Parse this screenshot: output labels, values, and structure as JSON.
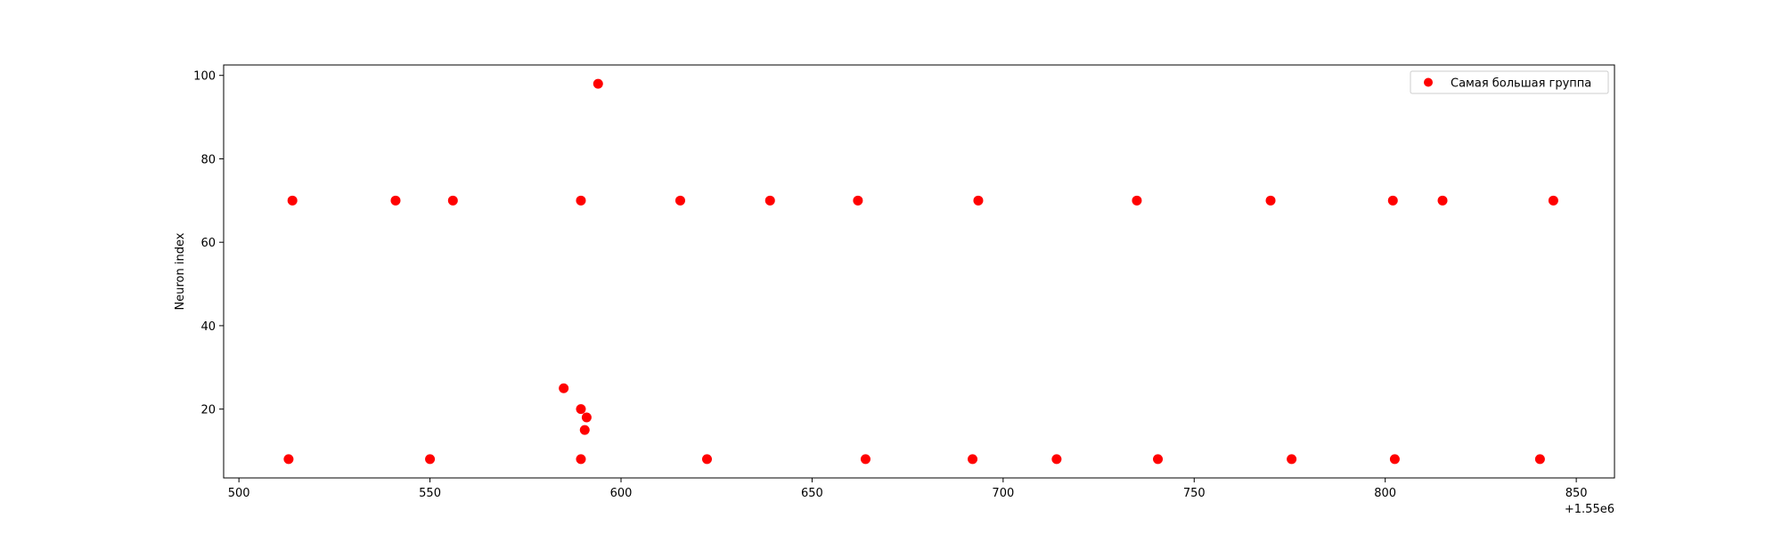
{
  "chart_data": {
    "type": "scatter",
    "title": "",
    "xlabel": "",
    "ylabel": "Neuron index",
    "x_offset_label": "+1.55e6",
    "xlim": [
      496,
      860
    ],
    "ylim": [
      3.5,
      102.5
    ],
    "xticks": [
      500,
      550,
      600,
      650,
      700,
      750,
      800,
      850
    ],
    "yticks": [
      20,
      40,
      60,
      80,
      100
    ],
    "grid": false,
    "legend_position": "top-right",
    "series": [
      {
        "name": "Самая большая группа",
        "color": "#ff0000",
        "marker": "circle",
        "points": [
          [
            514,
            70
          ],
          [
            541,
            70
          ],
          [
            556,
            70
          ],
          [
            589.5,
            70
          ],
          [
            615.5,
            70
          ],
          [
            639,
            70
          ],
          [
            662,
            70
          ],
          [
            693.5,
            70
          ],
          [
            735,
            70
          ],
          [
            770,
            70
          ],
          [
            802,
            70
          ],
          [
            815,
            70
          ],
          [
            844,
            70
          ],
          [
            594,
            98
          ],
          [
            585,
            25
          ],
          [
            589.5,
            20
          ],
          [
            591,
            18
          ],
          [
            590.5,
            15
          ],
          [
            513,
            8
          ],
          [
            550,
            8
          ],
          [
            589.5,
            8
          ],
          [
            622.5,
            8
          ],
          [
            664,
            8
          ],
          [
            692,
            8
          ],
          [
            714,
            8
          ],
          [
            740.5,
            8
          ],
          [
            775.5,
            8
          ],
          [
            802.5,
            8
          ],
          [
            840.5,
            8
          ]
        ]
      }
    ]
  }
}
